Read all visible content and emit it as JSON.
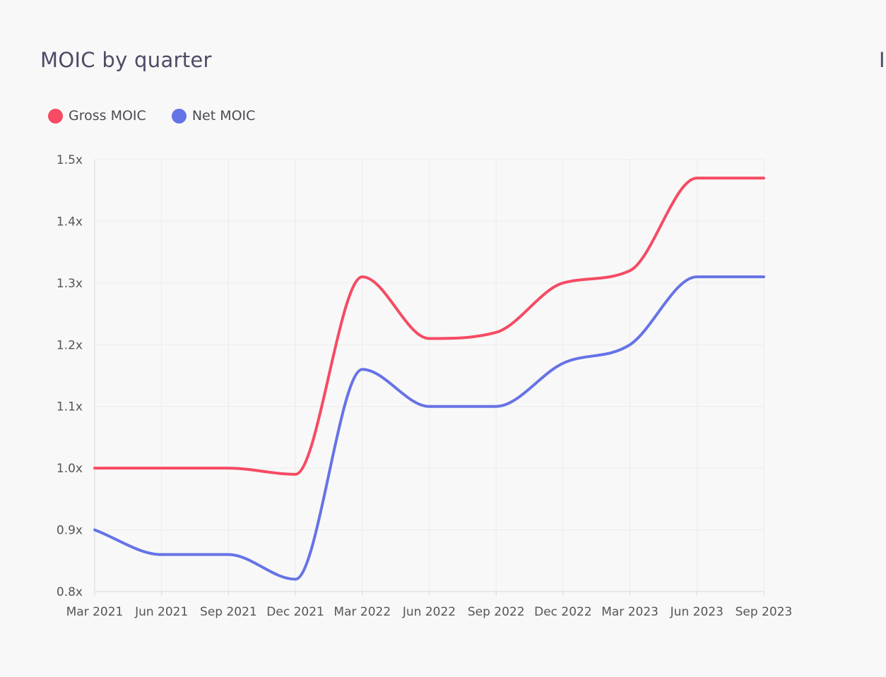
{
  "page": {
    "title": "MOIC by quarter",
    "right_title_fragment": "I"
  },
  "colors": {
    "gross": "#f64b63",
    "net": "#6673e6",
    "grid": "#ececec",
    "axis": "#d9d9d9"
  },
  "chart_data": {
    "type": "line",
    "title": "MOIC by quarter",
    "xlabel": "",
    "ylabel": "",
    "categories": [
      "Mar 2021",
      "Jun 2021",
      "Sep 2021",
      "Dec 2021",
      "Mar 2022",
      "Jun 2022",
      "Sep 2022",
      "Dec 2022",
      "Mar 2023",
      "Jun 2023",
      "Sep 2023"
    ],
    "ylim": [
      0.8,
      1.5
    ],
    "yticks": [
      0.8,
      0.9,
      1.0,
      1.1,
      1.2,
      1.3,
      1.4,
      1.5
    ],
    "yticklabels": [
      "0.8x",
      "0.9x",
      "1.0x",
      "1.1x",
      "1.2x",
      "1.3x",
      "1.4x",
      "1.5x"
    ],
    "grid": true,
    "legend": "top-left",
    "series": [
      {
        "name": "Gross MOIC",
        "color": "#f64b63",
        "values": [
          1.0,
          1.0,
          1.0,
          0.99,
          1.31,
          1.21,
          1.22,
          1.3,
          1.32,
          1.47,
          1.47
        ]
      },
      {
        "name": "Net MOIC",
        "color": "#6673e6",
        "values": [
          0.9,
          0.86,
          0.86,
          0.82,
          1.16,
          1.1,
          1.1,
          1.17,
          1.2,
          1.31,
          1.31
        ]
      }
    ]
  }
}
